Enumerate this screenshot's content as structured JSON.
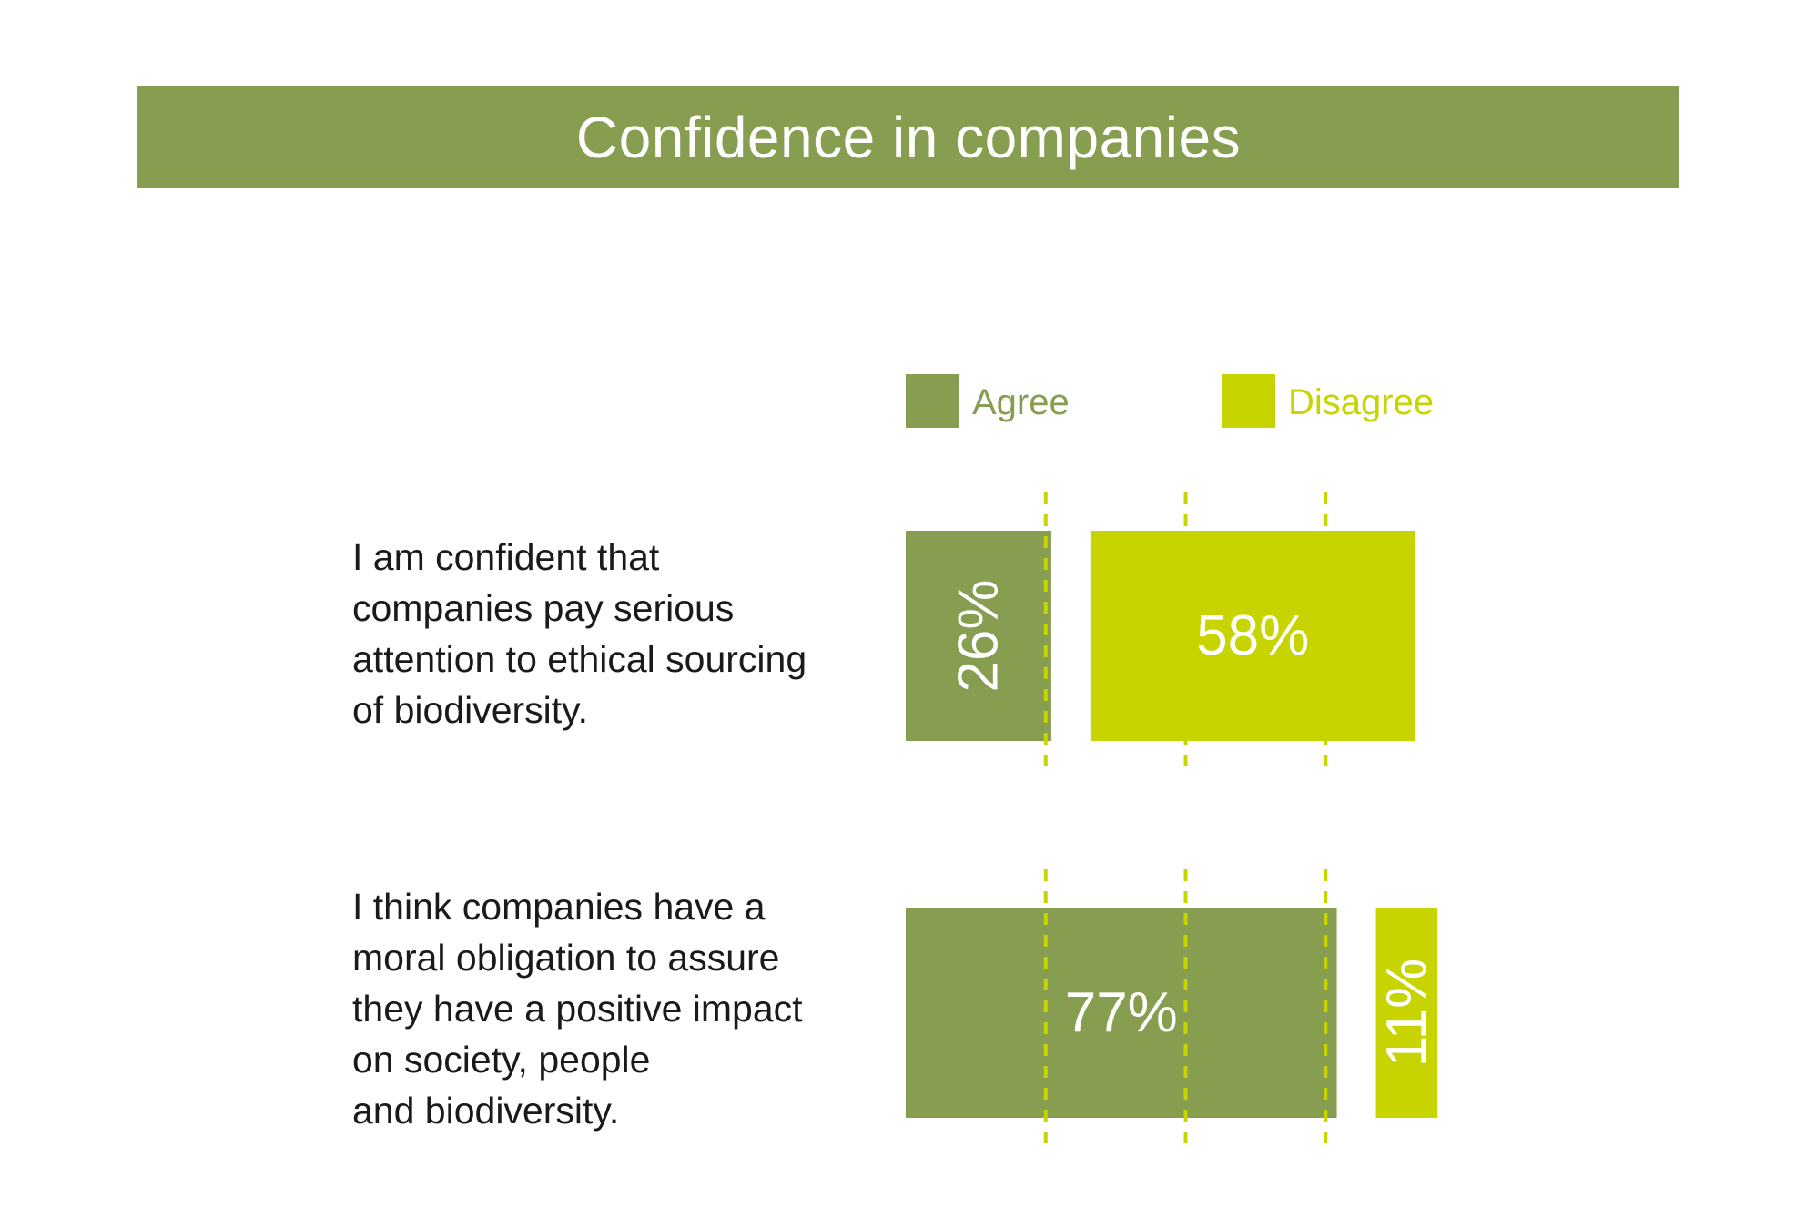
{
  "header": {
    "title": "Confidence in companies"
  },
  "colors": {
    "banner": "#879d4f",
    "agree": "#879d4f",
    "disagree": "#c8d400",
    "text": "#1a1a1a",
    "white": "#ffffff"
  },
  "chart_data": {
    "type": "bar",
    "title": "Confidence in companies",
    "categories": [
      "I am confident that\ncompanies pay serious\nattention to ethical sourcing\nof biodiversity.",
      "I think companies have a\nmoral obligation to assure\nthey have a positive impact\non society, people\nand biodiversity."
    ],
    "series": [
      {
        "name": "Agree",
        "values": [
          26,
          77
        ],
        "labels": [
          "26%",
          "77%"
        ],
        "color": "#879d4f"
      },
      {
        "name": "Disagree",
        "values": [
          58,
          11
        ],
        "labels": [
          "58%",
          "11%"
        ],
        "color": "#c8d400"
      }
    ],
    "gridlines": [
      25,
      50,
      75
    ],
    "ylim": [
      0,
      100
    ],
    "legend": "top"
  }
}
